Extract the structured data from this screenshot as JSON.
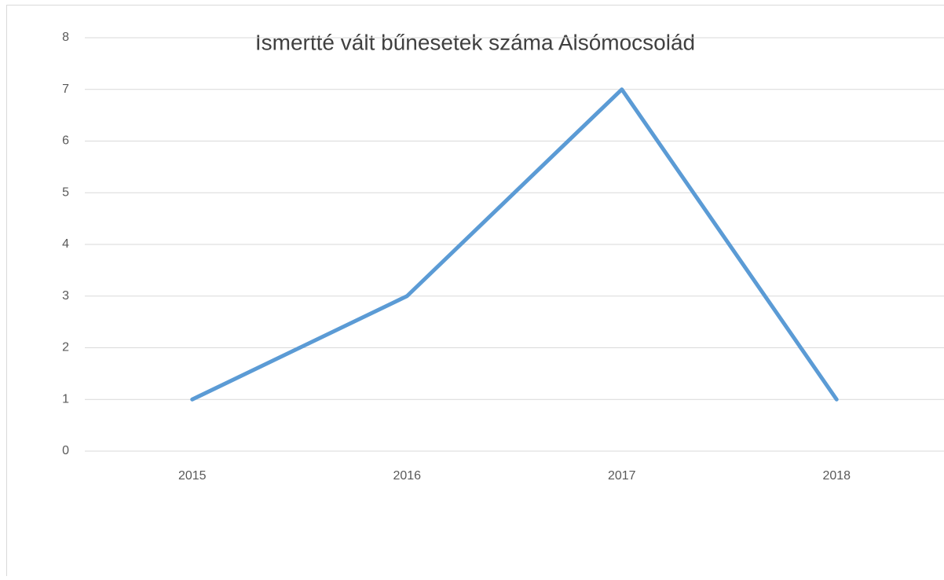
{
  "chart_data": {
    "type": "line",
    "title": "Ismertté vált bűnesetek száma Alsómocsolád",
    "categories": [
      "2015",
      "2016",
      "2017",
      "2018"
    ],
    "series": [
      {
        "name": "Ismertté vált bűnesetek",
        "color": "#5b9bd5",
        "values": [
          1,
          3,
          7,
          1
        ]
      }
    ],
    "ylim": [
      0,
      8
    ],
    "yticks": [
      0,
      1,
      2,
      3,
      4,
      5,
      6,
      7,
      8
    ],
    "grid": true
  }
}
